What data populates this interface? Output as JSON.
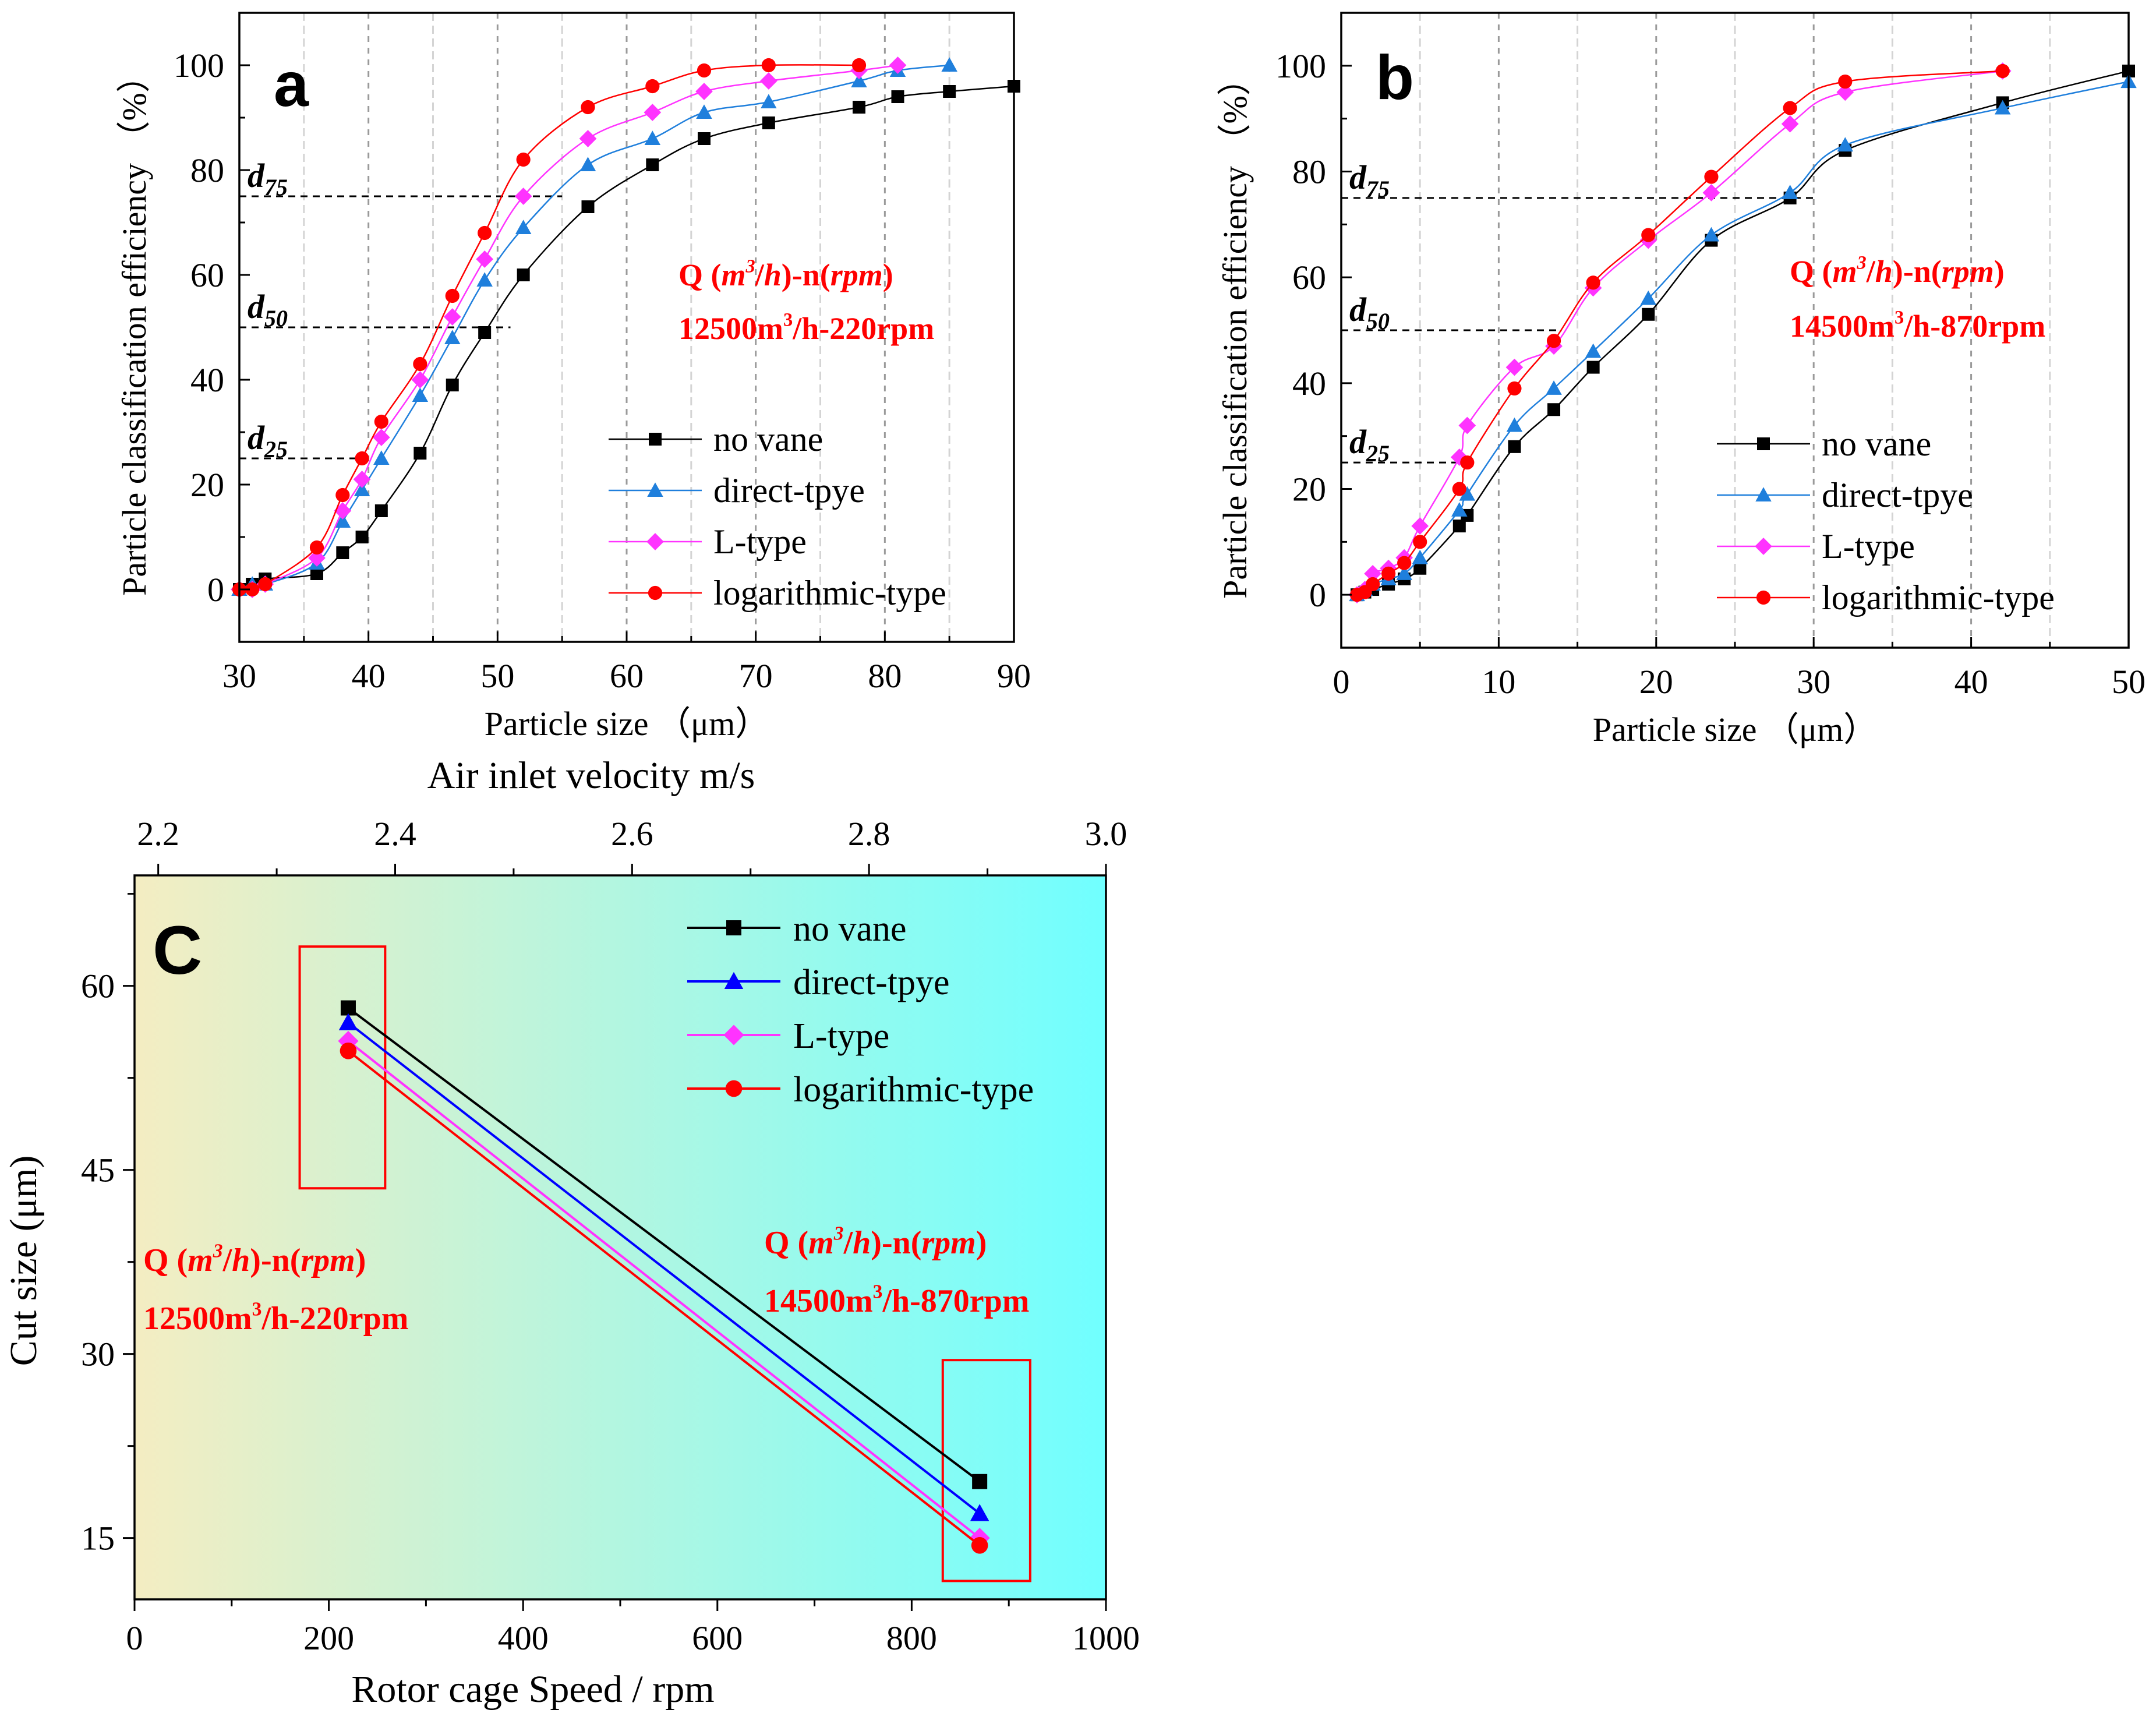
{
  "colors": {
    "no_vane": "#000000",
    "direct_ab": "#1f7fdc",
    "direct_c": "#0000ff",
    "l_type": "#ff33ff",
    "log_type": "#ff0000",
    "annotation": "#ff0000",
    "grid": "#b4b4b4",
    "bg_left": "#f4edc2",
    "bg_right": "#70ffff"
  },
  "chart_data": [
    {
      "id": "a",
      "type": "line",
      "panel_letter": "a",
      "xlabel": "Particle size （μm）",
      "ylabel": "Particle classification efficiency （%）",
      "xlim": [
        30,
        90
      ],
      "ylim": [
        -10,
        110
      ],
      "xticks": [
        30,
        40,
        50,
        60,
        70,
        80,
        90
      ],
      "yticks": [
        0,
        20,
        40,
        60,
        80,
        100
      ],
      "grid_x": [
        35,
        40,
        45,
        50,
        55,
        60,
        65,
        70,
        75,
        80,
        85
      ],
      "ref_lines": [
        {
          "label": "d",
          "sub": "75",
          "y": 75,
          "x_end": 55
        },
        {
          "label": "d",
          "sub": "50",
          "y": 50,
          "x_end": 51
        },
        {
          "label": "d",
          "sub": "25",
          "y": 25,
          "x_end": 40
        }
      ],
      "annotation_line1": {
        "pre": "Q (",
        "m": "m",
        "sup": "3",
        "mid": "/",
        "h": "h",
        "post": ")-n(",
        "rpm": "rpm",
        "end": ")"
      },
      "annotation_line2": {
        "pre": "12500m",
        "sup": "3",
        "post": "/h-220rpm"
      },
      "series": [
        {
          "name": "no vane",
          "key": "no_vane",
          "marker": "square",
          "x": [
            30,
            31,
            32,
            36,
            38,
            39.5,
            41,
            44,
            46.5,
            49,
            52,
            57,
            62,
            66,
            71,
            78,
            81,
            85,
            90
          ],
          "y": [
            0,
            1,
            2,
            3,
            7,
            10,
            15,
            26,
            39,
            49,
            60,
            73,
            81,
            86,
            89,
            92,
            94,
            95,
            96
          ]
        },
        {
          "name": "direct-tpye",
          "key": "direct_ab",
          "marker": "triangle",
          "x": [
            30,
            31,
            32,
            36,
            38,
            39.5,
            41,
            44,
            46.5,
            49,
            52,
            57,
            62,
            66,
            71,
            78,
            81,
            85
          ],
          "y": [
            0,
            1,
            1,
            5,
            13,
            19,
            25,
            37,
            48,
            59,
            69,
            81,
            86,
            91,
            93,
            97,
            99,
            100
          ]
        },
        {
          "name": "L-type",
          "key": "l_type",
          "marker": "diamond",
          "x": [
            30,
            31,
            32,
            36,
            38,
            39.5,
            41,
            44,
            46.5,
            49,
            52,
            57,
            62,
            66,
            71,
            78,
            81
          ],
          "y": [
            0,
            0,
            1,
            6,
            15,
            21,
            29,
            40,
            52,
            63,
            75,
            86,
            91,
            95,
            97,
            99,
            100
          ]
        },
        {
          "name": "logarithmic-type",
          "key": "log_type",
          "marker": "circle",
          "x": [
            30,
            31,
            32,
            36,
            38,
            39.5,
            41,
            44,
            46.5,
            49,
            52,
            57,
            62,
            66,
            71,
            78
          ],
          "y": [
            0,
            0,
            1,
            8,
            18,
            25,
            32,
            43,
            56,
            68,
            82,
            92,
            96,
            99,
            100,
            100
          ]
        }
      ]
    },
    {
      "id": "b",
      "type": "line",
      "panel_letter": "b",
      "xlabel": "Particle size （μm）",
      "ylabel": "Particle classification efficiency （%）",
      "xlim": [
        0,
        50
      ],
      "ylim": [
        -10,
        110
      ],
      "xticks": [
        0,
        10,
        20,
        30,
        40,
        50
      ],
      "yticks": [
        0,
        20,
        40,
        60,
        80,
        100
      ],
      "grid_x": [
        5,
        10,
        15,
        20,
        25,
        30,
        35,
        40,
        45
      ],
      "ref_lines": [
        {
          "label": "d",
          "sub": "75",
          "y": 75,
          "x_end": 30
        },
        {
          "label": "d",
          "sub": "50",
          "y": 50,
          "x_end": 14
        },
        {
          "label": "d",
          "sub": "25",
          "y": 25,
          "x_end": 8
        }
      ],
      "annotation_line1": {
        "pre": "Q (",
        "m": "m",
        "sup": "3",
        "mid": "/",
        "h": "h",
        "post": ")-n(",
        "rpm": "rpm",
        "end": ")"
      },
      "annotation_line2": {
        "pre": "14500m",
        "sup": "3",
        "post": "/h-870rpm"
      },
      "series": [
        {
          "name": "no vane",
          "key": "no_vane",
          "marker": "square",
          "x": [
            1,
            1.5,
            2,
            3,
            4,
            5,
            7.5,
            8,
            11,
            13.5,
            16,
            19.5,
            23.5,
            28.5,
            32,
            42,
            50
          ],
          "y": [
            0,
            0.5,
            1,
            2,
            3,
            5,
            13,
            15,
            28,
            35,
            43,
            53,
            67,
            75,
            84,
            93,
            99
          ]
        },
        {
          "name": "direct-tpye",
          "key": "direct_ab",
          "marker": "triangle",
          "x": [
            1,
            1.5,
            2,
            3,
            4,
            5,
            7.5,
            8,
            11,
            13.5,
            16,
            19.5,
            23.5,
            28.5,
            32,
            42,
            50
          ],
          "y": [
            0,
            1,
            2,
            3,
            4,
            7,
            16,
            19,
            32,
            39,
            46,
            56,
            68,
            76,
            85,
            92,
            97
          ]
        },
        {
          "name": "L-type",
          "key": "l_type",
          "marker": "diamond",
          "x": [
            1,
            1.5,
            2,
            3,
            4,
            5,
            7.5,
            8,
            11,
            13.5,
            16,
            19.5,
            23.5,
            28.5,
            32,
            42
          ],
          "y": [
            0,
            1,
            4,
            5,
            7,
            13,
            26,
            32,
            43,
            47,
            58,
            67,
            76,
            89,
            95,
            99
          ]
        },
        {
          "name": "logarithmic-type",
          "key": "log_type",
          "marker": "circle",
          "x": [
            1,
            1.5,
            2,
            3,
            4,
            5,
            7.5,
            8,
            11,
            13.5,
            16,
            19.5,
            23.5,
            28.5,
            32,
            42
          ],
          "y": [
            0,
            0.5,
            2,
            4,
            6,
            10,
            20,
            25,
            39,
            48,
            59,
            68,
            79,
            92,
            97,
            99
          ]
        }
      ]
    },
    {
      "id": "c",
      "type": "line",
      "panel_letter": "C",
      "xlabel": "Rotor cage Speed / rpm",
      "ylabel": "Cut size (μm)",
      "top_xlabel": "Air inlet velocity  m/s",
      "xlim": [
        0,
        1000
      ],
      "ylim": [
        10,
        69
      ],
      "xticks": [
        0,
        200,
        400,
        600,
        800,
        1000
      ],
      "yticks": [
        15,
        30,
        45,
        60
      ],
      "top_xlim": [
        2.18,
        3.0
      ],
      "top_xticks": [
        "2.2",
        "2.4",
        "2.6",
        "2.8",
        "3.0"
      ],
      "annotations": [
        {
          "line1": {
            "pre": "Q (",
            "m": "m",
            "sup": "3",
            "mid": "/",
            "h": "h",
            "post": ")-n(",
            "rpm": "rpm",
            "end": ")"
          },
          "line2": {
            "pre": "12500m",
            "sup": "3",
            "post": "/h-220rpm"
          }
        },
        {
          "line1": {
            "pre": "Q (",
            "m": "m",
            "sup": "3",
            "mid": "/",
            "h": "h",
            "post": ")-n(",
            "rpm": "rpm",
            "end": ")"
          },
          "line2": {
            "pre": "14500m",
            "sup": "3",
            "post": "/h-870rpm"
          }
        }
      ],
      "highlight_boxes": [
        {
          "x_range": [
            170,
            258
          ],
          "y_range": [
            43.5,
            63.2
          ]
        },
        {
          "x_range": [
            832,
            922
          ],
          "y_range": [
            11.5,
            29.5
          ]
        }
      ],
      "series": [
        {
          "name": "no vane",
          "key": "no_vane",
          "marker": "square",
          "x": [
            220,
            870
          ],
          "y": [
            58.2,
            19.6
          ]
        },
        {
          "name": "direct-tpye",
          "key": "direct_c",
          "marker": "triangle",
          "x": [
            220,
            870
          ],
          "y": [
            57.0,
            17.0
          ]
        },
        {
          "name": "L-type",
          "key": "l_type",
          "marker": "diamond",
          "x": [
            220,
            870
          ],
          "y": [
            55.5,
            15.0
          ]
        },
        {
          "name": "logarithmic-type",
          "key": "log_type",
          "marker": "circle",
          "x": [
            220,
            870
          ],
          "y": [
            54.7,
            14.4
          ]
        }
      ]
    }
  ]
}
